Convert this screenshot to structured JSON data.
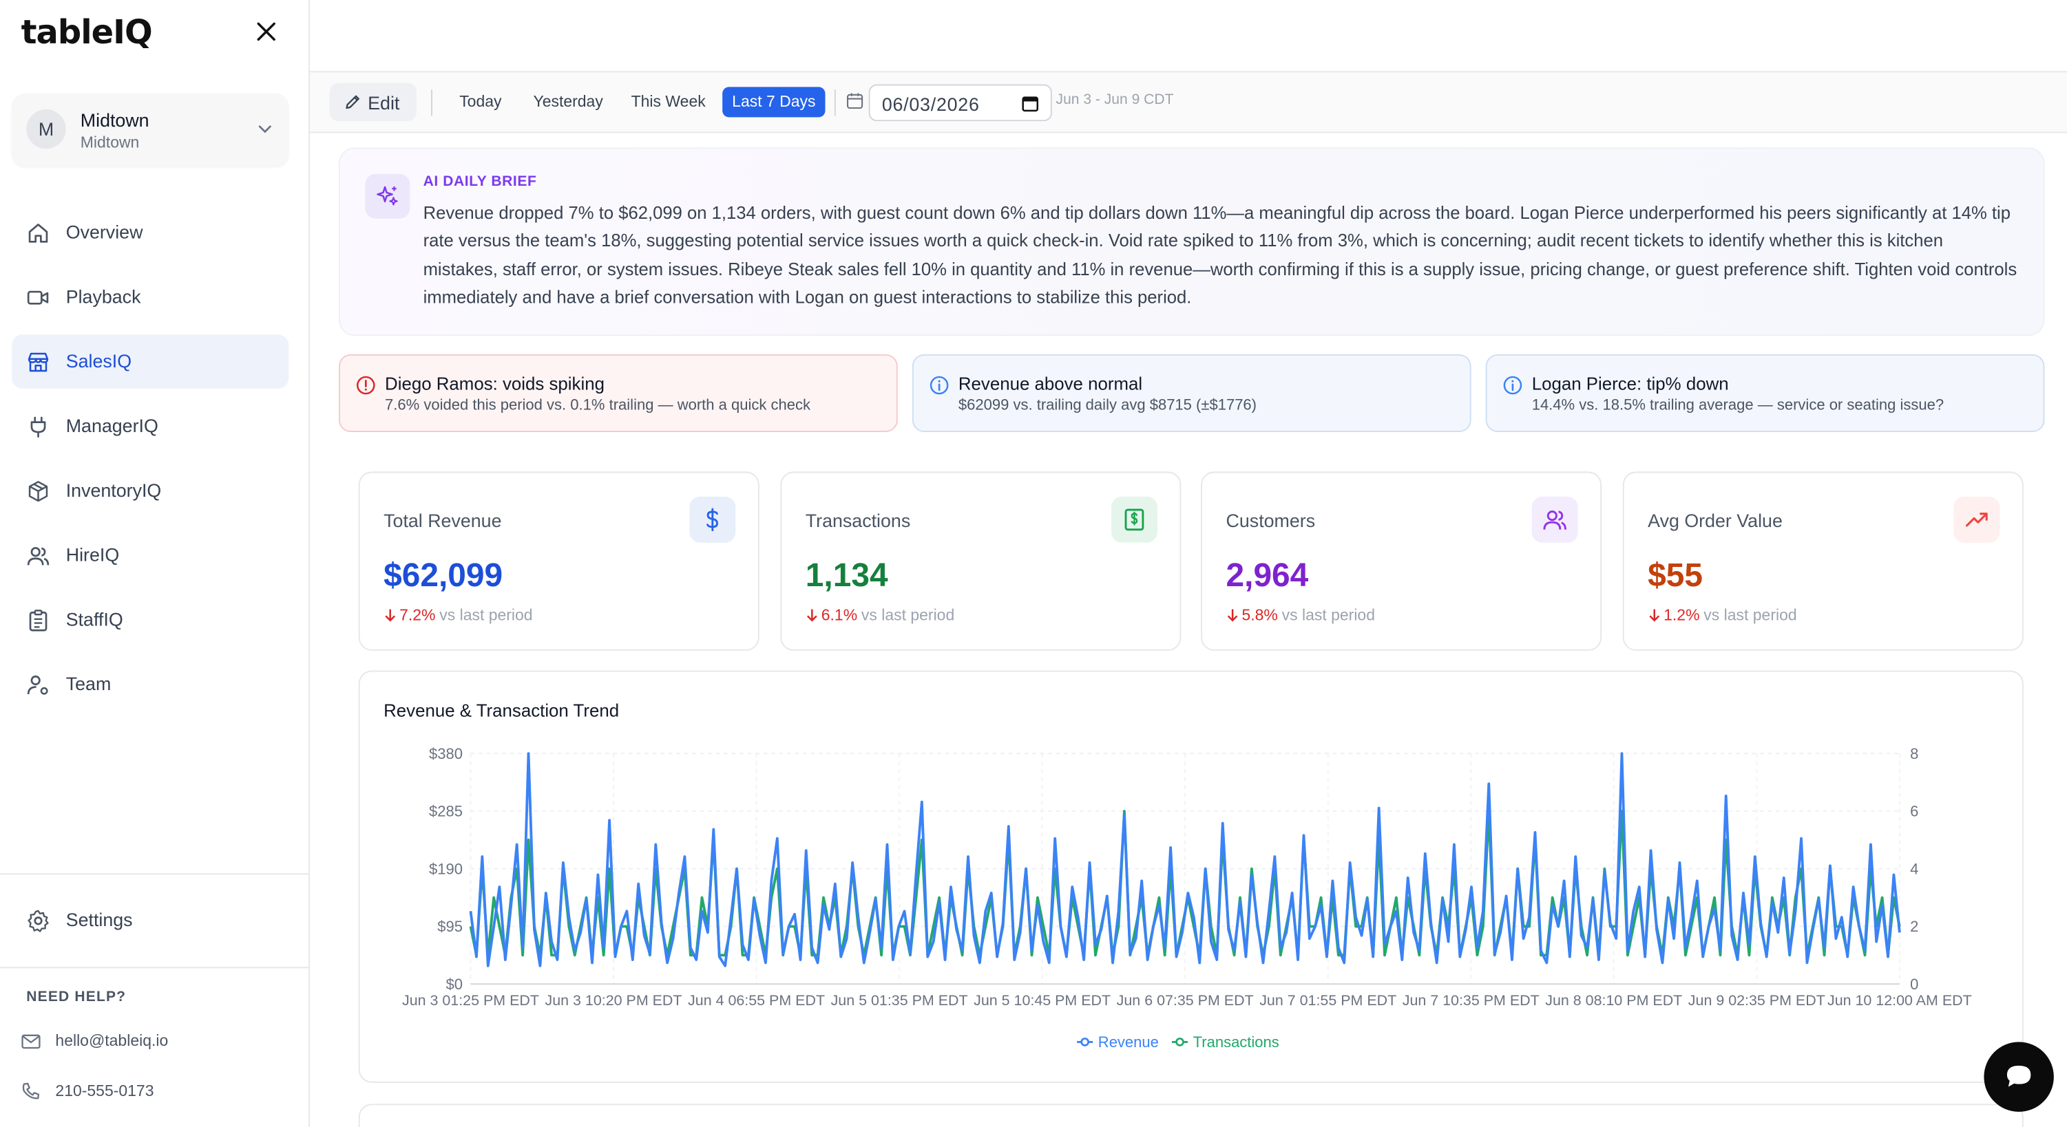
{
  "app": {
    "logo": "tableIQ"
  },
  "location": {
    "avatar": "M",
    "name": "Midtown",
    "sub": "Midtown"
  },
  "nav": [
    {
      "label": "Overview",
      "icon": "home-icon"
    },
    {
      "label": "Playback",
      "icon": "video-icon"
    },
    {
      "label": "SalesIQ",
      "icon": "store-icon",
      "active": true
    },
    {
      "label": "ManagerIQ",
      "icon": "plug-icon"
    },
    {
      "label": "InventoryIQ",
      "icon": "box-icon"
    },
    {
      "label": "HireIQ",
      "icon": "users-icon"
    },
    {
      "label": "StaffIQ",
      "icon": "clipboard-icon"
    },
    {
      "label": "Team",
      "icon": "user-cog-icon"
    }
  ],
  "settings_label": "Settings",
  "help": {
    "title": "NEED HELP?",
    "email": "hello@tableiq.io",
    "phone": "210-555-0173"
  },
  "toolbar": {
    "edit_label": "Edit",
    "ranges": [
      "Today",
      "Yesterday",
      "This Week",
      "Last 7 Days"
    ],
    "active_range": "Last 7 Days",
    "date_value": "06/03/2026",
    "date_range": "Jun 3 - Jun 9 CDT"
  },
  "brief": {
    "title": "AI DAILY BRIEF",
    "text": "Revenue dropped 7% to $62,099 on 1,134 orders, with guest count down 6% and tip dollars down 11%—a meaningful dip across the board. Logan Pierce underperformed his peers significantly at 14% tip rate versus the team's 18%, suggesting potential service issues worth a quick check-in. Void rate spiked to 11% from 3%, which is concerning; audit recent tickets to identify whether this is kitchen mistakes, staff error, or system issues. Ribeye Steak sales fell 10% in quantity and 11% in revenue—worth confirming if this is a supply issue, pricing change, or guest preference shift. Tighten void controls immediately and have a brief conversation with Logan on guest interactions to stabilize this period."
  },
  "alerts": [
    {
      "type": "warning",
      "title": "Diego Ramos: voids spiking",
      "sub": "7.6% voided this period vs. 0.1% trailing — worth a quick check"
    },
    {
      "type": "info",
      "title": "Revenue above normal",
      "sub": "$62099 vs. trailing daily avg $8715 (±$1776)"
    },
    {
      "type": "info",
      "title": "Logan Pierce: tip% down",
      "sub": "14.4% vs. 18.5% trailing average — service or seating issue?"
    }
  ],
  "kpis": [
    {
      "label": "Total Revenue",
      "value": "$62,099",
      "delta": "7.2%",
      "vs": "vs last period",
      "color": "#1d4ed8",
      "icon": "dollar-icon",
      "icon_bg": "#e8effb",
      "icon_color": "#2563eb"
    },
    {
      "label": "Transactions",
      "value": "1,134",
      "delta": "6.1%",
      "vs": "vs last period",
      "color": "#15803d",
      "icon": "receipt-icon",
      "icon_bg": "#e6f5ec",
      "icon_color": "#16a34a"
    },
    {
      "label": "Customers",
      "value": "2,964",
      "delta": "5.8%",
      "vs": "vs last period",
      "color": "#7e22ce",
      "icon": "users-icon",
      "icon_bg": "#f3ecfc",
      "icon_color": "#9333ea"
    },
    {
      "label": "Avg Order Value",
      "value": "$55",
      "delta": "1.2%",
      "vs": "vs last period",
      "color": "#c2410c",
      "icon": "trending-up-icon",
      "icon_bg": "#fdf0ee",
      "icon_color": "#ef4444"
    }
  ],
  "chart_data": {
    "type": "line",
    "title": "Revenue & Transaction Trend",
    "y_left_ticks": [
      "$380",
      "$285",
      "$190",
      "$95",
      "$0"
    ],
    "y_right_ticks": [
      "8",
      "6",
      "4",
      "2",
      "0"
    ],
    "ylim_left": [
      0,
      380
    ],
    "ylim_right": [
      0,
      8
    ],
    "x_tick_labels": [
      "Jun 3 01:25 PM EDT",
      "Jun 3 10:20 PM EDT",
      "Jun 4 06:55 PM EDT",
      "Jun 5 01:35 PM EDT",
      "Jun 5 10:45 PM EDT",
      "Jun 6 07:35 PM EDT",
      "Jun 7 01:55 PM EDT",
      "Jun 7 10:35 PM EDT",
      "Jun 8 08:10 PM EDT",
      "Jun 9 02:35 PM EDT",
      "Jun 10 12:00 AM EDT"
    ],
    "legend": "bottom-center",
    "grid": true,
    "series": [
      {
        "name": "Revenue",
        "axis": "left",
        "color": "#3b82f6",
        "values": [
          120,
          45,
          210,
          30,
          95,
          160,
          40,
          130,
          230,
          60,
          380,
          90,
          30,
          150,
          70,
          40,
          200,
          110,
          55,
          85,
          140,
          35,
          180,
          60,
          270,
          45,
          95,
          120,
          40,
          165,
          80,
          50,
          230,
          100,
          35,
          75,
          150,
          210,
          60,
          40,
          120,
          85,
          255,
          45,
          30,
          110,
          190,
          65,
          40,
          140,
          80,
          35,
          170,
          240,
          50,
          95,
          115,
          40,
          220,
          60,
          35,
          130,
          90,
          165,
          45,
          75,
          200,
          110,
          35,
          85,
          140,
          60,
          230,
          40,
          95,
          120,
          50,
          180,
          300,
          45,
          70,
          135,
          40,
          160,
          90,
          55,
          210,
          80,
          35,
          120,
          150,
          45,
          100,
          260,
          40,
          85,
          190,
          55,
          130,
          70,
          35,
          240,
          95,
          45,
          160,
          110,
          40,
          200,
          65,
          90,
          145,
          35,
          120,
          280,
          50,
          75,
          170,
          40,
          95,
          130,
          60,
          225,
          45,
          85,
          150,
          110,
          35,
          190,
          70,
          40,
          265,
          90,
          55,
          135,
          45,
          180,
          100,
          35,
          120,
          210,
          60,
          85,
          150,
          40,
          245,
          75,
          95,
          130,
          45,
          170,
          60,
          35,
          200,
          110,
          80,
          140,
          45,
          290,
          65,
          95,
          120,
          40,
          175,
          85,
          55,
          215,
          100,
          35,
          140,
          70,
          230,
          45,
          90,
          160,
          60,
          120,
          330,
          50,
          85,
          145,
          40,
          190,
          75,
          110,
          250,
          55,
          35,
          130,
          95,
          170,
          45,
          210,
          80,
          60,
          140,
          40,
          185,
          100,
          75,
          380,
          55,
          120,
          160,
          45,
          220,
          90,
          35,
          140,
          75,
          200,
          60,
          110,
          170,
          45,
          95,
          125,
          55,
          310,
          80,
          40,
          150,
          65,
          210,
          100,
          45,
          135,
          85,
          175,
          50,
          120,
          240,
          35,
          90,
          140,
          60,
          195,
          75,
          110,
          45,
          160,
          95,
          55,
          230,
          70,
          130,
          45,
          180,
          85
        ]
      },
      {
        "name": "Transactions",
        "axis": "right",
        "color": "#22a86b",
        "values": [
          2,
          1,
          4,
          1,
          3,
          2,
          1,
          3,
          4,
          1,
          5,
          2,
          1,
          3,
          1,
          1,
          4,
          2,
          1,
          2,
          3,
          1,
          3,
          1,
          4,
          1,
          2,
          2,
          1,
          3,
          2,
          1,
          4,
          2,
          1,
          2,
          3,
          4,
          1,
          1,
          3,
          2,
          5,
          1,
          1,
          2,
          4,
          1,
          1,
          3,
          2,
          1,
          3,
          4,
          1,
          2,
          2,
          1,
          4,
          1,
          1,
          3,
          2,
          3,
          1,
          2,
          4,
          2,
          1,
          2,
          3,
          1,
          4,
          1,
          2,
          2,
          1,
          3,
          5,
          1,
          2,
          3,
          1,
          3,
          2,
          1,
          4,
          2,
          1,
          2,
          3,
          1,
          2,
          5,
          1,
          2,
          4,
          1,
          3,
          2,
          1,
          4,
          2,
          1,
          3,
          2,
          1,
          4,
          1,
          2,
          3,
          1,
          2,
          6,
          1,
          2,
          3,
          1,
          2,
          3,
          1,
          4,
          1,
          2,
          3,
          2,
          1,
          4,
          2,
          1,
          5,
          2,
          1,
          3,
          1,
          4,
          2,
          1,
          2,
          4,
          1,
          2,
          3,
          1,
          5,
          2,
          2,
          3,
          1,
          3,
          1,
          1,
          4,
          2,
          2,
          3,
          1,
          5,
          1,
          2,
          3,
          1,
          3,
          2,
          1,
          4,
          2,
          1,
          3,
          2,
          4,
          1,
          2,
          3,
          1,
          2,
          6,
          1,
          2,
          3,
          1,
          4,
          2,
          2,
          5,
          1,
          1,
          3,
          2,
          3,
          1,
          4,
          2,
          1,
          3,
          1,
          4,
          2,
          2,
          6,
          1,
          2,
          3,
          1,
          4,
          2,
          1,
          3,
          2,
          4,
          1,
          2,
          3,
          1,
          2,
          3,
          1,
          5,
          2,
          1,
          3,
          1,
          4,
          2,
          1,
          3,
          2,
          3,
          1,
          3,
          4,
          1,
          2,
          3,
          1,
          4,
          2,
          2,
          1,
          3,
          2,
          1,
          4,
          2,
          3,
          1,
          3,
          2
        ]
      }
    ]
  }
}
